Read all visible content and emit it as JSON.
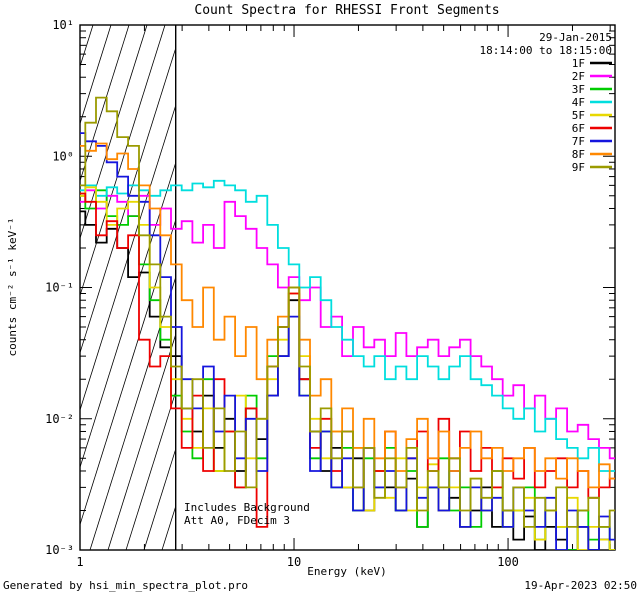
{
  "annotations": {
    "date": "29-Jan-2015",
    "time_range": "18:14:00 to 18:15:00",
    "background_note": "Includes Background",
    "att_note": "Att A0, FDecim 3"
  },
  "footer": {
    "generated_by": "Generated by hsi_min_spectra_plot.pro",
    "timestamp": "19-Apr-2023 02:50"
  },
  "chart_data": {
    "type": "line",
    "title": "Count Spectra for RHESSI Front Segments",
    "xlabel": "Energy (keV)",
    "ylabel": "counts cm⁻² s⁻¹ keV⁻¹",
    "xscale": "log",
    "yscale": "log",
    "xlim": [
      1,
      316
    ],
    "ylim": [
      0.001,
      10
    ],
    "grid": false,
    "legend_position": "top-right-inside",
    "hatch_region": {
      "x0": 1,
      "x1": 2.8
    },
    "x_ticks": [
      {
        "value": 1,
        "label": "1"
      },
      {
        "value": 10,
        "label": "10"
      },
      {
        "value": 100,
        "label": "100"
      }
    ],
    "y_ticks": [
      {
        "value": 10,
        "label": "10¹"
      },
      {
        "value": 1,
        "label": "10⁰"
      },
      {
        "value": 0.1,
        "label": "10⁻¹"
      },
      {
        "value": 0.01,
        "label": "10⁻²"
      },
      {
        "value": 0.001,
        "label": "10⁻³"
      }
    ],
    "x": [
      1.0,
      1.12,
      1.26,
      1.41,
      1.58,
      1.78,
      2.0,
      2.24,
      2.51,
      2.82,
      3.16,
      3.55,
      3.98,
      4.47,
      5.01,
      5.62,
      6.31,
      7.08,
      7.94,
      8.91,
      10.0,
      11.2,
      12.6,
      14.1,
      15.8,
      17.8,
      20.0,
      22.4,
      25.1,
      28.2,
      31.6,
      35.5,
      39.8,
      44.7,
      50.1,
      56.2,
      63.1,
      70.8,
      79.4,
      89.1,
      100,
      112,
      126,
      141,
      158,
      178,
      200,
      224,
      251,
      282,
      316
    ],
    "series": [
      {
        "name": "1F",
        "color": "#000000",
        "values": [
          0.38,
          0.3,
          0.22,
          0.28,
          0.2,
          0.12,
          0.13,
          0.06,
          0.035,
          0.03,
          0.012,
          0.008,
          0.015,
          0.006,
          0.01,
          0.004,
          0.012,
          0.007,
          0.015,
          0.03,
          0.08,
          0.02,
          0.008,
          0.004,
          0.006,
          0.003,
          0.005,
          0.002,
          0.004,
          0.003,
          0.002,
          0.0035,
          0.0015,
          0.003,
          0.002,
          0.0025,
          0.0015,
          0.002,
          0.003,
          0.0015,
          0.002,
          0.0012,
          0.0018,
          0.001,
          0.0015,
          0.0012,
          0.001,
          0.0015,
          0.001,
          0.0012,
          0.001
        ]
      },
      {
        "name": "2F",
        "color": "#ff00ff",
        "values": [
          0.45,
          0.55,
          0.4,
          0.5,
          0.45,
          0.35,
          0.5,
          0.3,
          0.4,
          0.28,
          0.32,
          0.22,
          0.3,
          0.2,
          0.45,
          0.35,
          0.28,
          0.2,
          0.15,
          0.1,
          0.12,
          0.08,
          0.1,
          0.05,
          0.06,
          0.03,
          0.05,
          0.035,
          0.04,
          0.03,
          0.045,
          0.03,
          0.035,
          0.04,
          0.03,
          0.035,
          0.04,
          0.03,
          0.025,
          0.02,
          0.015,
          0.018,
          0.012,
          0.015,
          0.01,
          0.012,
          0.008,
          0.009,
          0.007,
          0.006,
          0.005
        ]
      },
      {
        "name": "3F",
        "color": "#00cc00",
        "values": [
          0.5,
          0.4,
          0.55,
          0.35,
          0.3,
          0.35,
          0.15,
          0.08,
          0.04,
          0.015,
          0.008,
          0.005,
          0.02,
          0.004,
          0.008,
          0.003,
          0.015,
          0.005,
          0.03,
          0.05,
          0.1,
          0.015,
          0.005,
          0.008,
          0.003,
          0.006,
          0.002,
          0.005,
          0.003,
          0.006,
          0.002,
          0.004,
          0.0015,
          0.003,
          0.005,
          0.002,
          0.003,
          0.0015,
          0.002,
          0.004,
          0.0015,
          0.002,
          0.003,
          0.0012,
          0.002,
          0.0015,
          0.001,
          0.002,
          0.0012,
          0.0015,
          0.001
        ]
      },
      {
        "name": "4F",
        "color": "#00dede",
        "values": [
          0.55,
          0.6,
          0.5,
          0.58,
          0.52,
          0.6,
          0.55,
          0.5,
          0.55,
          0.6,
          0.55,
          0.62,
          0.58,
          0.65,
          0.6,
          0.55,
          0.45,
          0.5,
          0.3,
          0.2,
          0.15,
          0.1,
          0.12,
          0.08,
          0.05,
          0.04,
          0.03,
          0.025,
          0.03,
          0.02,
          0.025,
          0.02,
          0.03,
          0.025,
          0.02,
          0.025,
          0.03,
          0.02,
          0.018,
          0.015,
          0.012,
          0.01,
          0.012,
          0.008,
          0.01,
          0.007,
          0.006,
          0.005,
          0.006,
          0.004,
          0.004
        ]
      },
      {
        "name": "5F",
        "color": "#e8d800",
        "values": [
          0.5,
          0.58,
          0.45,
          0.3,
          0.4,
          0.45,
          0.3,
          0.1,
          0.05,
          0.02,
          0.01,
          0.006,
          0.012,
          0.004,
          0.008,
          0.015,
          0.005,
          0.01,
          0.02,
          0.04,
          0.09,
          0.03,
          0.01,
          0.005,
          0.008,
          0.003,
          0.006,
          0.002,
          0.004,
          0.0025,
          0.005,
          0.002,
          0.003,
          0.0045,
          0.002,
          0.003,
          0.0015,
          0.0035,
          0.002,
          0.003,
          0.0015,
          0.002,
          0.0025,
          0.0012,
          0.002,
          0.0015,
          0.0025,
          0.001,
          0.0015,
          0.0012,
          0.001
        ]
      },
      {
        "name": "6F",
        "color": "#ee0000",
        "values": [
          0.52,
          0.45,
          0.25,
          0.32,
          0.2,
          0.25,
          0.04,
          0.025,
          0.03,
          0.012,
          0.006,
          0.015,
          0.004,
          0.02,
          0.008,
          0.003,
          0.012,
          0.0015,
          0.025,
          0.05,
          0.09,
          0.02,
          0.006,
          0.01,
          0.004,
          0.008,
          0.003,
          0.006,
          0.004,
          0.008,
          0.003,
          0.005,
          0.008,
          0.004,
          0.01,
          0.005,
          0.008,
          0.004,
          0.006,
          0.003,
          0.005,
          0.0035,
          0.006,
          0.003,
          0.004,
          0.005,
          0.003,
          0.004,
          0.0025,
          0.003,
          0.0035
        ]
      },
      {
        "name": "7F",
        "color": "#1515dd",
        "values": [
          1.5,
          1.3,
          1.2,
          0.9,
          0.7,
          0.5,
          0.45,
          0.25,
          0.12,
          0.05,
          0.02,
          0.012,
          0.025,
          0.008,
          0.015,
          0.005,
          0.01,
          0.004,
          0.015,
          0.03,
          0.06,
          0.015,
          0.004,
          0.008,
          0.003,
          0.005,
          0.002,
          0.006,
          0.003,
          0.004,
          0.002,
          0.005,
          0.0025,
          0.003,
          0.002,
          0.004,
          0.0015,
          0.003,
          0.002,
          0.0025,
          0.0015,
          0.003,
          0.002,
          0.0015,
          0.0025,
          0.001,
          0.002,
          0.0015,
          0.001,
          0.0018,
          0.0012
        ]
      },
      {
        "name": "8F",
        "color": "#ff8800",
        "values": [
          1.2,
          1.1,
          1.25,
          0.95,
          1.05,
          0.8,
          0.6,
          0.4,
          0.25,
          0.15,
          0.08,
          0.05,
          0.1,
          0.04,
          0.06,
          0.03,
          0.05,
          0.02,
          0.04,
          0.06,
          0.1,
          0.04,
          0.015,
          0.02,
          0.008,
          0.012,
          0.006,
          0.01,
          0.005,
          0.008,
          0.004,
          0.007,
          0.01,
          0.005,
          0.008,
          0.004,
          0.006,
          0.008,
          0.005,
          0.006,
          0.004,
          0.005,
          0.006,
          0.004,
          0.005,
          0.0035,
          0.005,
          0.004,
          0.003,
          0.0045,
          0.0035
        ]
      },
      {
        "name": "9F",
        "color": "#9b9b00",
        "values": [
          0.6,
          1.8,
          2.8,
          2.2,
          1.4,
          1.2,
          0.25,
          0.15,
          0.06,
          0.025,
          0.012,
          0.02,
          0.006,
          0.012,
          0.004,
          0.008,
          0.003,
          0.01,
          0.025,
          0.05,
          0.1,
          0.025,
          0.008,
          0.012,
          0.005,
          0.008,
          0.003,
          0.006,
          0.0025,
          0.005,
          0.003,
          0.006,
          0.002,
          0.004,
          0.003,
          0.005,
          0.002,
          0.0035,
          0.0025,
          0.004,
          0.002,
          0.003,
          0.0015,
          0.0025,
          0.002,
          0.003,
          0.0015,
          0.002,
          0.0025,
          0.0015,
          0.002
        ]
      }
    ]
  }
}
